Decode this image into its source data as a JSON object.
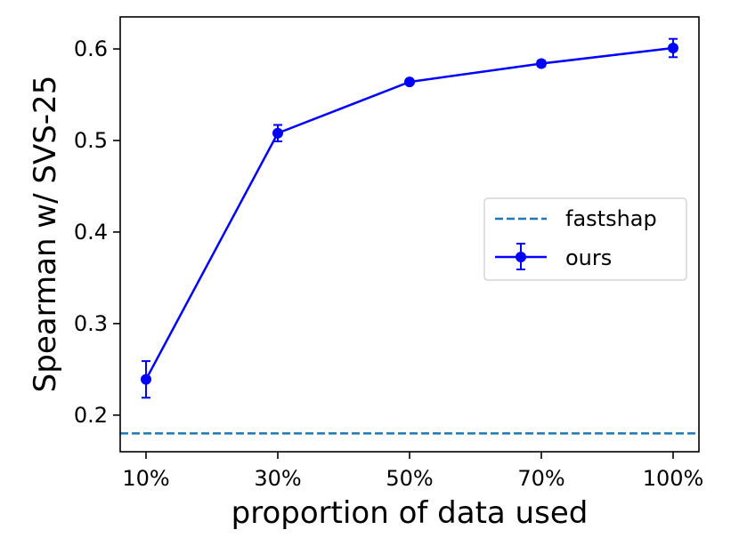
{
  "chart_data": {
    "type": "line",
    "xlabel": "proportion of data used",
    "ylabel": "Spearman w/ SVS-25",
    "categories": [
      "10%",
      "30%",
      "50%",
      "70%",
      "100%"
    ],
    "ylim": [
      0.16,
      0.635
    ],
    "yticks": [
      "0.2",
      "0.3",
      "0.4",
      "0.5",
      "0.6"
    ],
    "yticks_values": [
      0.2,
      0.3,
      0.4,
      0.5,
      0.6
    ],
    "grid": false,
    "legend_placement": "center-right",
    "series": [
      {
        "name": "fastshap",
        "style": "dashed",
        "color": "#1f77b4",
        "constant": 0.18
      },
      {
        "name": "ours",
        "style": "solid-marker-errorbar",
        "color": "#0000ff",
        "values": [
          0.239,
          0.508,
          0.564,
          0.584,
          0.601
        ],
        "errors": [
          0.02,
          0.009,
          0.002,
          0.003,
          0.01
        ]
      }
    ]
  }
}
